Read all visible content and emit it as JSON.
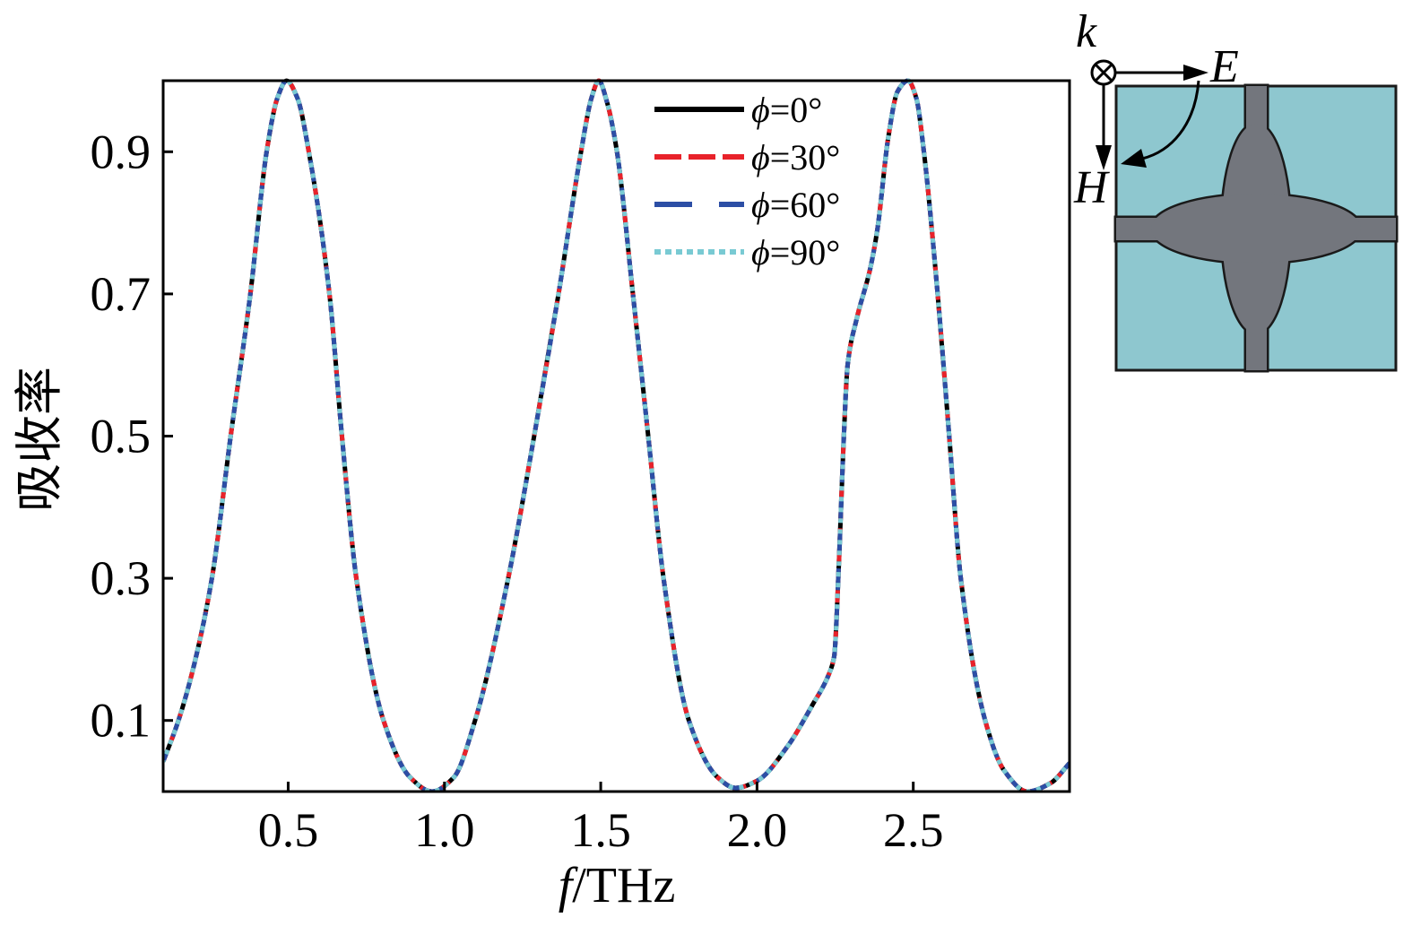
{
  "chart_data": {
    "type": "line",
    "xlabel": "f/THz",
    "ylabel": "吸收率",
    "xlim": [
      0.1,
      3.0
    ],
    "ylim": [
      0,
      1.0
    ],
    "xticks": [
      0.5,
      1.0,
      1.5,
      2.0,
      2.5
    ],
    "xtick_labels": [
      "0.5",
      "1.0",
      "1.5",
      "2.0",
      "2.5"
    ],
    "yticks": [
      0.1,
      0.3,
      0.5,
      0.7,
      0.9
    ],
    "ytick_labels": [
      "0.1",
      "0.3",
      "0.5",
      "0.7",
      "0.9"
    ],
    "grid": false,
    "legend_position": "top-center",
    "x": [
      0.1,
      0.149,
      0.2,
      0.256,
      0.316,
      0.379,
      0.431,
      0.465,
      0.495,
      0.53,
      0.566,
      0.632,
      0.672,
      0.718,
      0.805,
      0.89,
      0.96,
      1.03,
      1.098,
      1.204,
      1.287,
      1.365,
      1.437,
      1.47,
      1.494,
      1.52,
      1.552,
      1.603,
      1.652,
      1.701,
      1.782,
      1.874,
      1.931,
      2.0,
      2.1,
      2.175,
      2.23,
      2.247,
      2.262,
      2.276,
      2.29,
      2.319,
      2.362,
      2.385,
      2.42,
      2.45,
      2.483,
      2.51,
      2.534,
      2.578,
      2.615,
      2.652,
      2.73,
      2.79,
      2.865,
      2.94,
      3.0
    ],
    "series": [
      {
        "name": "ϕ=0°",
        "color": "#000000",
        "style": "solid",
        "values": [
          0.042,
          0.1,
          0.18,
          0.3,
          0.5,
          0.7,
          0.9,
          0.975,
          1.0,
          0.975,
          0.9,
          0.7,
          0.5,
          0.3,
          0.1,
          0.02,
          0.0,
          0.02,
          0.1,
          0.3,
          0.5,
          0.7,
          0.9,
          0.975,
          1.0,
          0.97,
          0.9,
          0.7,
          0.5,
          0.3,
          0.1,
          0.02,
          0.005,
          0.015,
          0.065,
          0.12,
          0.165,
          0.19,
          0.32,
          0.48,
          0.6,
          0.665,
          0.735,
          0.79,
          0.92,
          0.985,
          1.0,
          0.975,
          0.9,
          0.7,
          0.5,
          0.3,
          0.1,
          0.03,
          0.0,
          0.012,
          0.04
        ]
      },
      {
        "name": "ϕ=30°",
        "color": "#e8222a",
        "style": "dashed",
        "values": [
          0.042,
          0.1,
          0.18,
          0.3,
          0.5,
          0.7,
          0.9,
          0.975,
          1.0,
          0.975,
          0.9,
          0.7,
          0.5,
          0.3,
          0.1,
          0.02,
          0.0,
          0.02,
          0.1,
          0.3,
          0.5,
          0.7,
          0.9,
          0.975,
          1.0,
          0.97,
          0.9,
          0.7,
          0.5,
          0.3,
          0.1,
          0.02,
          0.005,
          0.015,
          0.065,
          0.12,
          0.165,
          0.19,
          0.32,
          0.48,
          0.6,
          0.665,
          0.735,
          0.79,
          0.92,
          0.985,
          1.0,
          0.975,
          0.9,
          0.7,
          0.5,
          0.3,
          0.1,
          0.03,
          0.0,
          0.012,
          0.04
        ]
      },
      {
        "name": "ϕ=60°",
        "color": "#2c4ea5",
        "style": "long-dashed",
        "values": [
          0.042,
          0.1,
          0.18,
          0.3,
          0.5,
          0.7,
          0.9,
          0.975,
          1.0,
          0.975,
          0.9,
          0.7,
          0.5,
          0.3,
          0.1,
          0.02,
          0.0,
          0.02,
          0.1,
          0.3,
          0.5,
          0.7,
          0.9,
          0.975,
          1.0,
          0.97,
          0.9,
          0.7,
          0.5,
          0.3,
          0.1,
          0.02,
          0.005,
          0.015,
          0.065,
          0.12,
          0.165,
          0.19,
          0.32,
          0.48,
          0.6,
          0.665,
          0.735,
          0.79,
          0.92,
          0.985,
          1.0,
          0.975,
          0.9,
          0.7,
          0.5,
          0.3,
          0.1,
          0.03,
          0.0,
          0.012,
          0.04
        ]
      },
      {
        "name": "ϕ=90°",
        "color": "#79cad3",
        "style": "dotted",
        "values": [
          0.042,
          0.1,
          0.18,
          0.3,
          0.5,
          0.7,
          0.9,
          0.975,
          1.0,
          0.975,
          0.9,
          0.7,
          0.5,
          0.3,
          0.1,
          0.02,
          0.0,
          0.02,
          0.1,
          0.3,
          0.5,
          0.7,
          0.9,
          0.975,
          1.0,
          0.97,
          0.9,
          0.7,
          0.5,
          0.3,
          0.1,
          0.02,
          0.005,
          0.015,
          0.065,
          0.12,
          0.165,
          0.19,
          0.32,
          0.48,
          0.6,
          0.665,
          0.735,
          0.79,
          0.92,
          0.985,
          1.0,
          0.975,
          0.9,
          0.7,
          0.5,
          0.3,
          0.1,
          0.03,
          0.0,
          0.012,
          0.04
        ]
      }
    ]
  },
  "inset": {
    "k_label": "k",
    "e_label": "E",
    "h_label": "H",
    "cell_color": "#8ec7cf",
    "resonator_color": "#73767d",
    "icons": [
      "wave-vector-into-page-icon",
      "electric-field-arrow",
      "magnetic-field-arrow",
      "polarization-rotation-arrow"
    ]
  }
}
